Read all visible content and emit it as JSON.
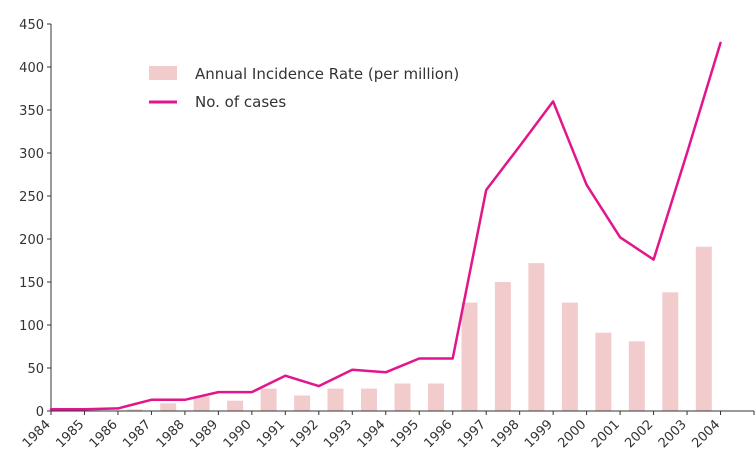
{
  "chart_data": {
    "type": "bar",
    "title": "",
    "xlabel": "",
    "ylabel": "",
    "ylim": [
      0,
      450
    ],
    "yticks": [
      0,
      50,
      100,
      150,
      200,
      250,
      300,
      350,
      400,
      450
    ],
    "grid": false,
    "legend_position": "top-left",
    "categories": [
      "1984",
      "1985",
      "1986",
      "1987",
      "1988",
      "1989",
      "1990",
      "1991",
      "1992",
      "1993",
      "1994",
      "1995",
      "1996",
      "1997",
      "1998",
      "1999",
      "2000",
      "2001",
      "2002",
      "2003",
      "2004"
    ],
    "series": [
      {
        "name": "Annual Incidence Rate (per million)",
        "kind": "bar",
        "color": "#f2cccc",
        "values": [
          0,
          0,
          2,
          9,
          17,
          12,
          26,
          18,
          26,
          26,
          32,
          32,
          126,
          150,
          172,
          126,
          91,
          81,
          138,
          191,
          null
        ]
      },
      {
        "name": "No. of cases",
        "kind": "line",
        "color": "#e2158c",
        "values": [
          2,
          2,
          3,
          13,
          13,
          22,
          22,
          41,
          29,
          48,
          45,
          61,
          61,
          257,
          308,
          360,
          263,
          202,
          176,
          300,
          428
        ]
      }
    ]
  }
}
